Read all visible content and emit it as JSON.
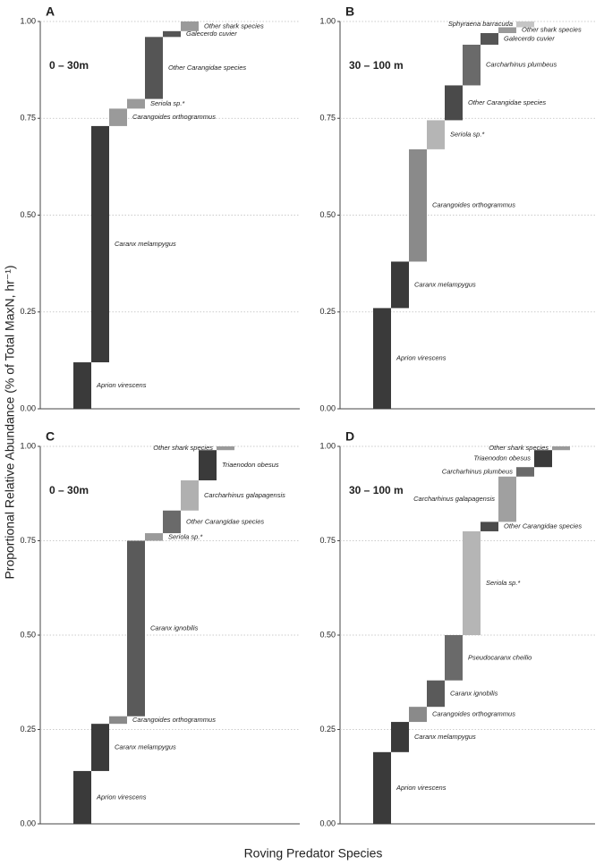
{
  "y_axis_label": "Proportional Relative Abundance (% of Total MaxN, hr⁻¹)",
  "x_axis_label": "Roving Predator Species",
  "chart_data": [
    {
      "type": "waterfall",
      "panel": "A",
      "depth": "0 – 30m",
      "categories": [
        "Aprion virescens",
        "Caranx melampygus",
        "Carangoides orthogrammus",
        "Seriola sp.*",
        "Other Carangidae species",
        "Galecerdo cuvier",
        "Other shark species"
      ],
      "values": [
        0.12,
        0.61,
        0.045,
        0.025,
        0.16,
        0.015,
        0.025
      ],
      "colors": [
        "#3a3a3a",
        "#3a3a3a",
        "#9a9a9a",
        "#9a9a9a",
        "#555555",
        "#555555",
        "#9a9a9a"
      ],
      "ylim": [
        0,
        1
      ],
      "grid": true,
      "yticks": [
        {
          "value": 0,
          "label": "0.00"
        },
        {
          "value": 0.25,
          "label": "0.25"
        },
        {
          "value": 0.5,
          "label": "0.50"
        },
        {
          "value": 0.75,
          "label": "0.75"
        },
        {
          "value": 1,
          "label": "1.00"
        }
      ]
    },
    {
      "type": "waterfall",
      "panel": "B",
      "depth": "30 – 100 m",
      "categories": [
        "Aprion virescens",
        "Caranx melampygus",
        "Carangoides orthogrammus",
        "Seriola sp.*",
        "Other Carangidae species",
        "Carcharhinus plumbeus",
        "Galecerdo cuvier",
        "Other shark species",
        "Sphyraena barracuda"
      ],
      "values": [
        0.26,
        0.12,
        0.29,
        0.075,
        0.09,
        0.105,
        0.03,
        0.015,
        0.015
      ],
      "colors": [
        "#3a3a3a",
        "#3a3a3a",
        "#8a8a8a",
        "#b5b5b5",
        "#4a4a4a",
        "#6a6a6a",
        "#555555",
        "#9a9a9a",
        "#c5c5c5"
      ],
      "ylim": [
        0,
        1
      ],
      "grid": true,
      "yticks": [
        {
          "value": 0,
          "label": "0.00"
        },
        {
          "value": 0.25,
          "label": "0.25"
        },
        {
          "value": 0.5,
          "label": "0.50"
        },
        {
          "value": 0.75,
          "label": "0.75"
        },
        {
          "value": 1,
          "label": "1.00"
        }
      ]
    },
    {
      "type": "waterfall",
      "panel": "C",
      "depth": "0 – 30m",
      "categories": [
        "Aprion virescens",
        "Caranx melampygus",
        "Carangoides orthogrammus",
        "Caranx ignobilis",
        "Seriola sp.*",
        "Other Carangidae species",
        "Carcharhinus galapagensis",
        "Triaenodon obesus",
        "Other shark species"
      ],
      "values": [
        0.14,
        0.125,
        0.02,
        0.465,
        0.02,
        0.06,
        0.08,
        0.08,
        0.01
      ],
      "colors": [
        "#3a3a3a",
        "#3a3a3a",
        "#8a8a8a",
        "#5a5a5a",
        "#9a9a9a",
        "#6a6a6a",
        "#b0b0b0",
        "#3a3a3a",
        "#9a9a9a"
      ],
      "ylim": [
        0,
        1
      ],
      "grid": true,
      "yticks": [
        {
          "value": 0,
          "label": "0.00"
        },
        {
          "value": 0.25,
          "label": "0.25"
        },
        {
          "value": 0.5,
          "label": "0.50"
        },
        {
          "value": 0.75,
          "label": "0.75"
        },
        {
          "value": 1,
          "label": "1.00"
        }
      ]
    },
    {
      "type": "waterfall",
      "panel": "D",
      "depth": "30 – 100 m",
      "categories": [
        "Aprion virescens",
        "Caranx melampygus",
        "Carangoides orthogrammus",
        "Caranx ignobilis",
        "Pseudocaranx cheilio",
        "Seriola sp.*",
        "Other Carangidae species",
        "Carcharhinus galapagensis",
        "Carcharhinus plumbeus",
        "Triaenodon obesus",
        "Other shark species"
      ],
      "values": [
        0.19,
        0.08,
        0.04,
        0.07,
        0.12,
        0.275,
        0.025,
        0.12,
        0.025,
        0.045,
        0.01
      ],
      "colors": [
        "#3a3a3a",
        "#3a3a3a",
        "#8a8a8a",
        "#5a5a5a",
        "#6a6a6a",
        "#b5b5b5",
        "#4a4a4a",
        "#a0a0a0",
        "#6a6a6a",
        "#3a3a3a",
        "#9a9a9a"
      ],
      "ylim": [
        0,
        1
      ],
      "grid": true,
      "yticks": [
        {
          "value": 0,
          "label": "0.00"
        },
        {
          "value": 0.25,
          "label": "0.25"
        },
        {
          "value": 0.5,
          "label": "0.50"
        },
        {
          "value": 0.75,
          "label": "0.75"
        },
        {
          "value": 1,
          "label": "1.00"
        }
      ]
    }
  ]
}
